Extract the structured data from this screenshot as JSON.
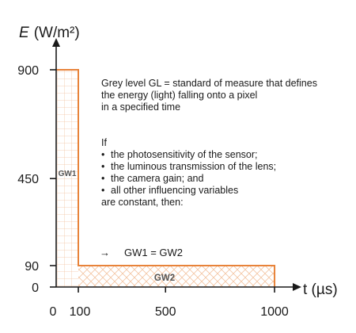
{
  "chart_data": {
    "type": "area",
    "y_axis": {
      "symbol": "E",
      "unit": "(W/m²)",
      "ticks": [
        0,
        90,
        450,
        900
      ],
      "ylim": [
        0,
        1050
      ]
    },
    "x_axis": {
      "label": "t (µs)",
      "ticks": [
        0,
        100,
        500,
        1000
      ],
      "xlim": [
        0,
        1100
      ]
    },
    "series": [
      {
        "name": "GW1",
        "t_start": 0,
        "t_end": 100,
        "E": 900
      },
      {
        "name": "GW2",
        "t_start": 100,
        "t_end": 1000,
        "E": 90
      }
    ],
    "colors": {
      "pulse": "#e8833a",
      "hatch": "#f3c4a2",
      "axis": "#1a1a1a"
    }
  },
  "description": {
    "definition_lines": [
      "Grey level GL = standard of measure that defines",
      "the energy (light) falling onto a pixel",
      "in a specified time"
    ],
    "conditions_intro": "If",
    "conditions": [
      "the photosensitivity of the sensor;",
      "the luminous transmission of the lens;",
      "the camera gain; and",
      "all other influencing variables"
    ],
    "conclusion": "are constant, then:",
    "bullet_symbol": "•"
  },
  "formula": {
    "arrow": "→",
    "text": "GW1 = GW2"
  }
}
